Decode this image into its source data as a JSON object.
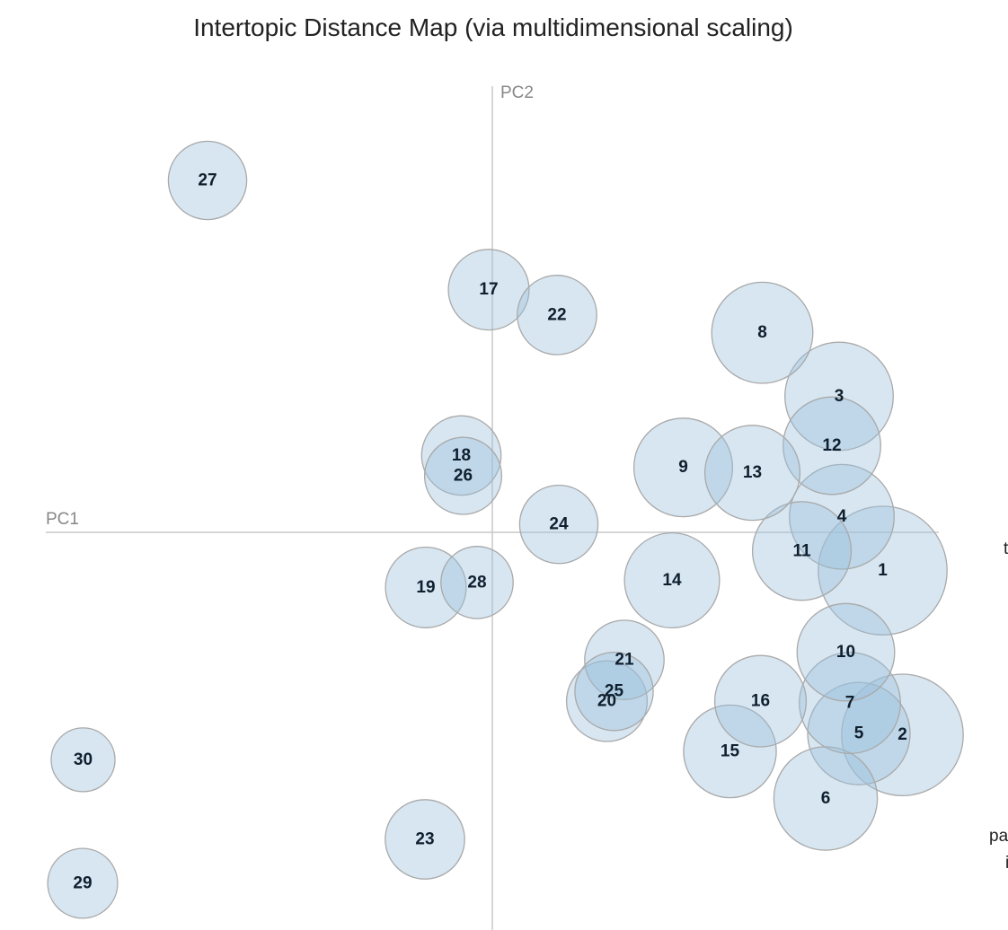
{
  "chart_data": {
    "type": "scatter",
    "title": "Intertopic Distance Map (via multidimensional scaling)",
    "xlabel": "PC1",
    "ylabel": "PC2",
    "xlim": [
      -100,
      100
    ],
    "ylim": [
      -100,
      100
    ],
    "colors": {
      "bubble_fill": "#9ac0db",
      "bubble_stroke": "#a9a9a9",
      "axis": "#c8c8c8"
    },
    "topics": [
      {
        "topic": "1",
        "x": 86.9,
        "y": -8.6,
        "size": 10.7
      },
      {
        "topic": "2",
        "x": 91.3,
        "y": -45.6,
        "size": 10.1
      },
      {
        "topic": "3",
        "x": 77.2,
        "y": 30.6,
        "size": 9.0
      },
      {
        "topic": "4",
        "x": 77.8,
        "y": 3.5,
        "size": 8.7
      },
      {
        "topic": "5",
        "x": 81.6,
        "y": -45.3,
        "size": 8.5
      },
      {
        "topic": "6",
        "x": 74.2,
        "y": -59.9,
        "size": 8.6
      },
      {
        "topic": "7",
        "x": 79.6,
        "y": -38.4,
        "size": 8.4
      },
      {
        "topic": "8",
        "x": 60.1,
        "y": 44.9,
        "size": 8.4
      },
      {
        "topic": "9",
        "x": 42.5,
        "y": 14.6,
        "size": 8.2
      },
      {
        "topic": "10",
        "x": 78.7,
        "y": -27.0,
        "size": 8.1
      },
      {
        "topic": "11",
        "x": 68.9,
        "y": -4.2,
        "size": 8.2
      },
      {
        "topic": "12",
        "x": 75.6,
        "y": 19.5,
        "size": 8.1
      },
      {
        "topic": "13",
        "x": 57.9,
        "y": 13.4,
        "size": 7.9
      },
      {
        "topic": "14",
        "x": 40.0,
        "y": -10.8,
        "size": 7.9
      },
      {
        "topic": "15",
        "x": 52.9,
        "y": -49.3,
        "size": 7.7
      },
      {
        "topic": "16",
        "x": 59.7,
        "y": -38.0,
        "size": 7.6
      },
      {
        "topic": "17",
        "x": -0.8,
        "y": 54.6,
        "size": 6.7
      },
      {
        "topic": "18",
        "x": -6.9,
        "y": 17.3,
        "size": 6.6
      },
      {
        "topic": "19",
        "x": -14.8,
        "y": -12.4,
        "size": 6.7
      },
      {
        "topic": "20",
        "x": 25.5,
        "y": -38.0,
        "size": 6.7
      },
      {
        "topic": "21",
        "x": 29.4,
        "y": -28.7,
        "size": 6.6
      },
      {
        "topic": "22",
        "x": 14.4,
        "y": 48.9,
        "size": 6.6
      },
      {
        "topic": "23",
        "x": -15.0,
        "y": -69.1,
        "size": 6.6
      },
      {
        "topic": "24",
        "x": 14.8,
        "y": 1.8,
        "size": 6.5
      },
      {
        "topic": "25",
        "x": 27.1,
        "y": -35.8,
        "size": 6.5
      },
      {
        "topic": "26",
        "x": -6.5,
        "y": 12.7,
        "size": 6.4
      },
      {
        "topic": "27",
        "x": -63.4,
        "y": 79.2,
        "size": 6.5
      },
      {
        "topic": "28",
        "x": -3.4,
        "y": -11.3,
        "size": 6.0
      },
      {
        "topic": "29",
        "x": -91.2,
        "y": -79.0,
        "size": 5.8
      },
      {
        "topic": "30",
        "x": -91.1,
        "y": -51.2,
        "size": 5.3
      }
    ],
    "clipped_fragments": [
      "t",
      "pa",
      "i"
    ]
  }
}
